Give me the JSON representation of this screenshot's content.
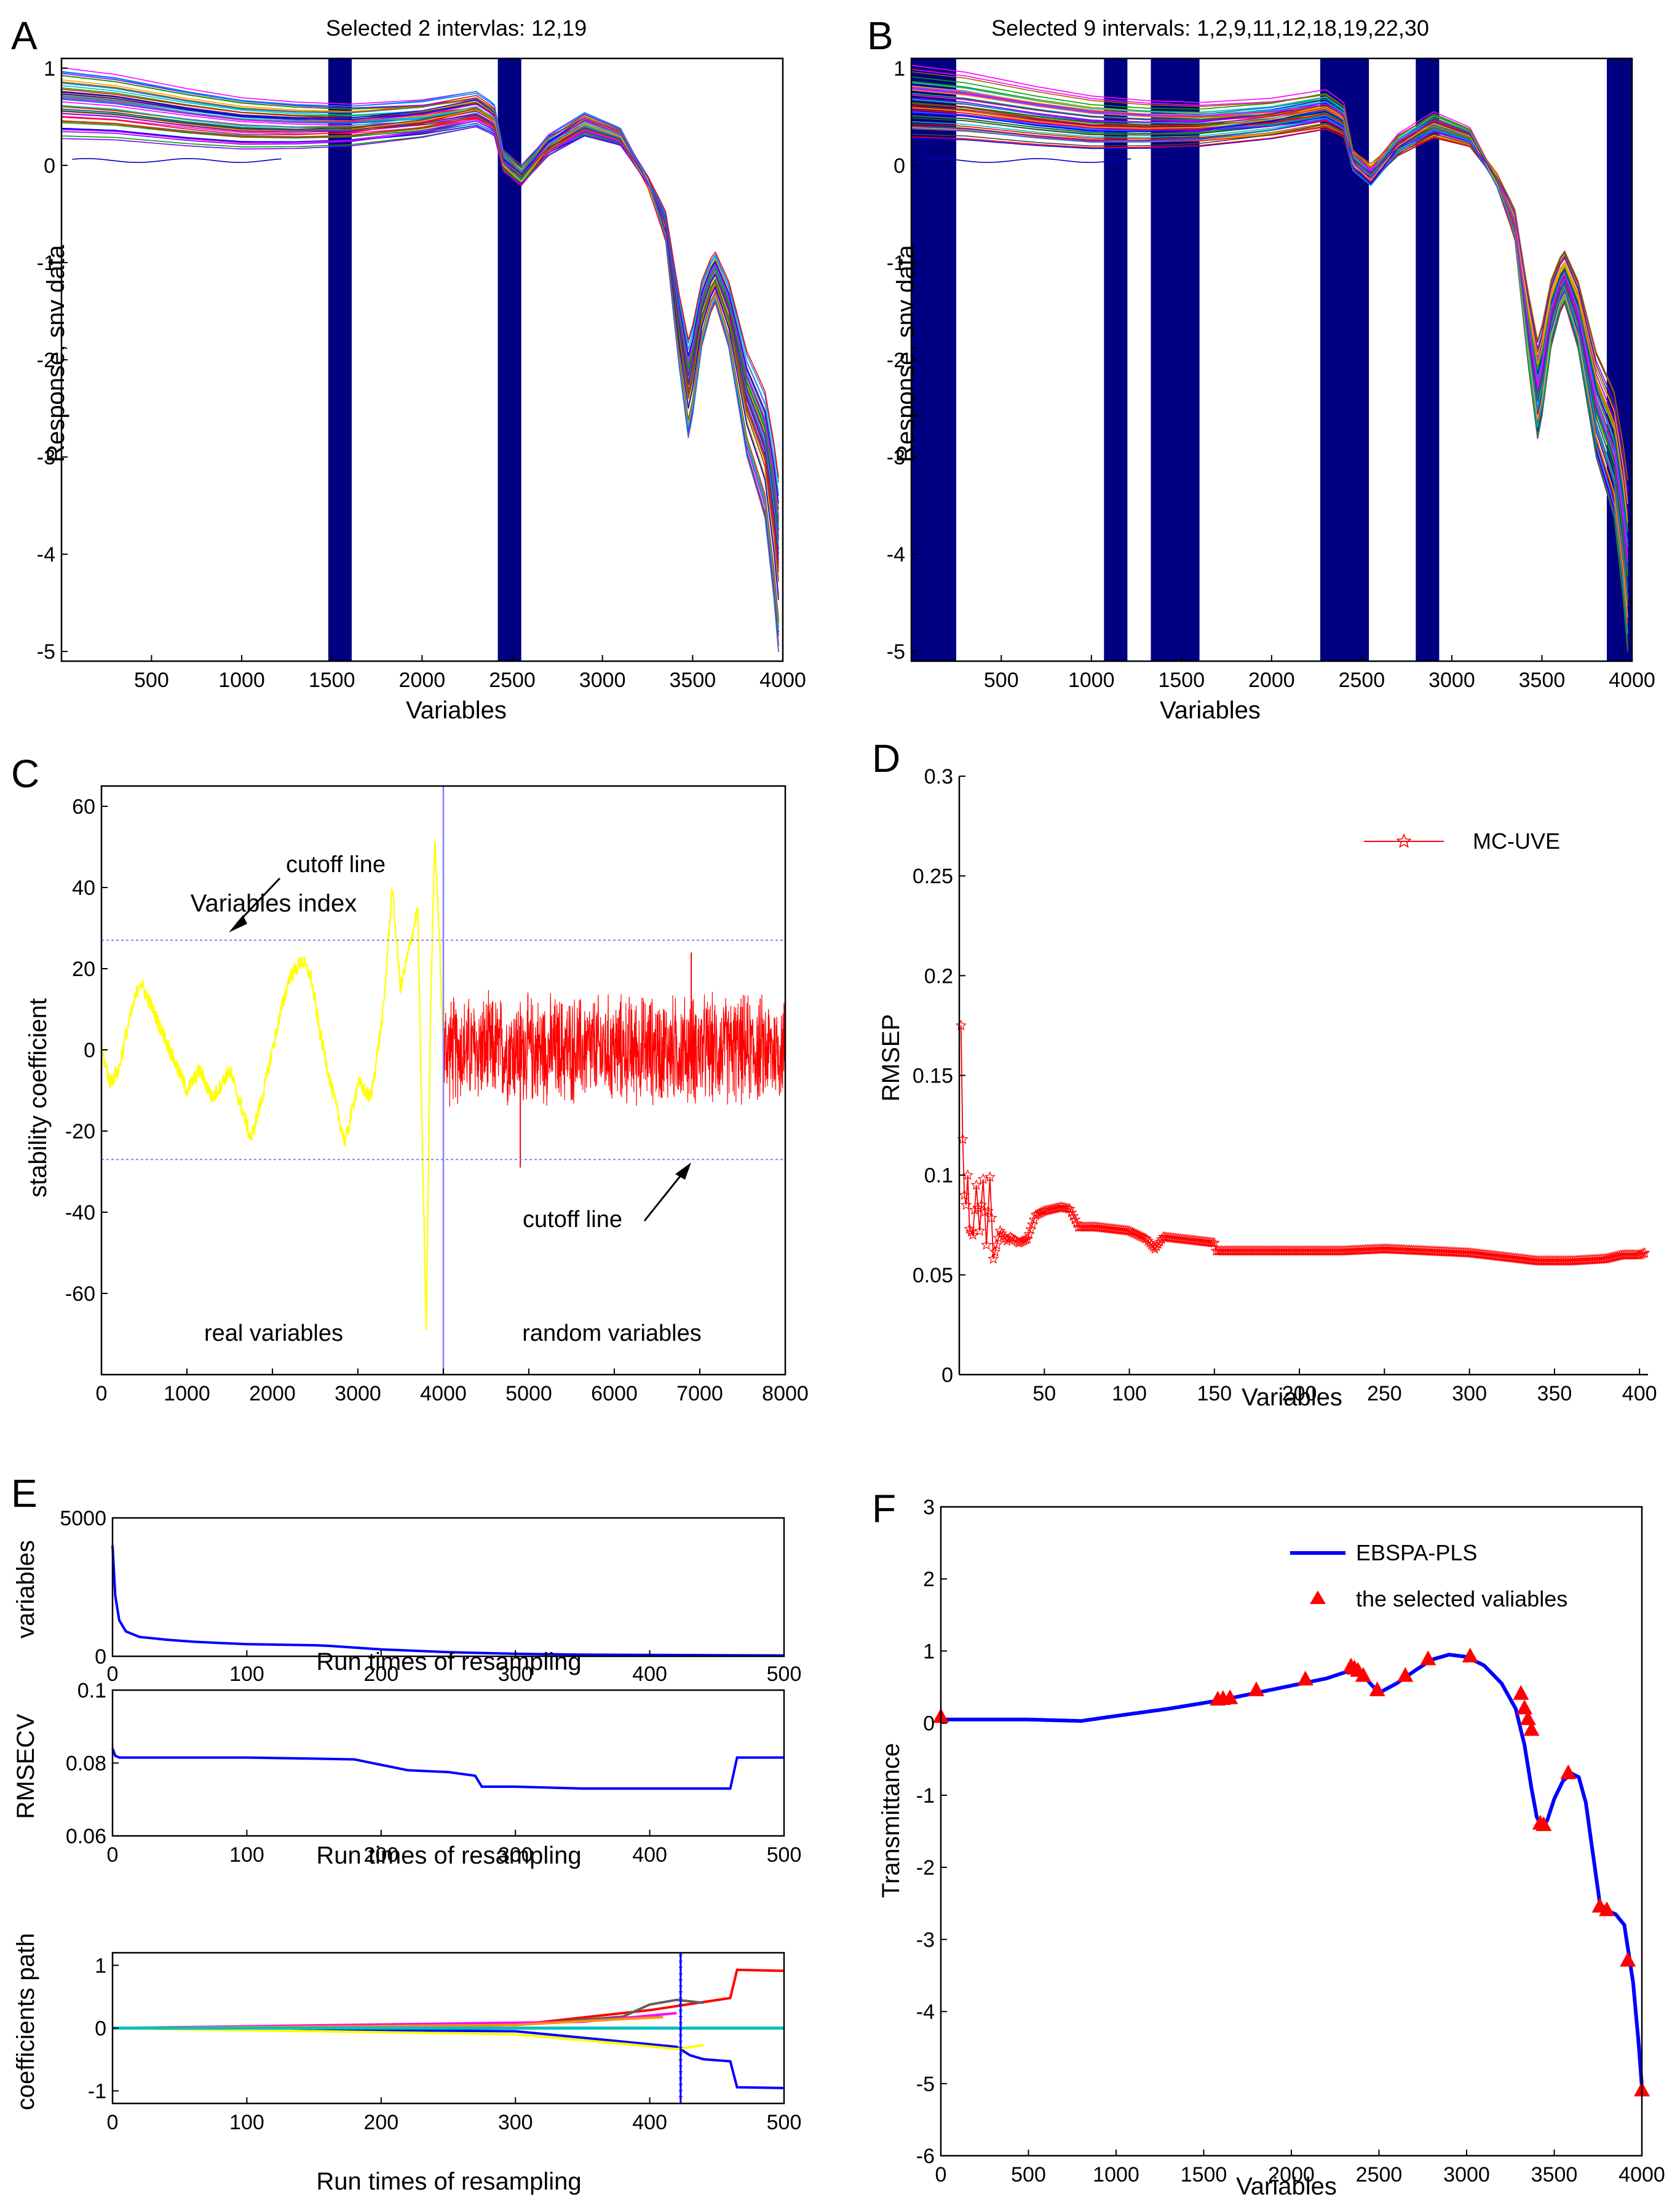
{
  "figure": {
    "panel_labels": [
      "A",
      "B",
      "C",
      "D",
      "E",
      "F"
    ],
    "colors": {
      "axis": "#000000",
      "interval_fill": "#000080",
      "cutoff": "#8080ff",
      "divider": "#8080ff",
      "real": "#ffff00",
      "random": "#ff0000",
      "mcuve": "#ff0000",
      "blue_line": "#0000ff",
      "cyan": "#00c0c0",
      "spectra_palette": [
        "#0000ff",
        "#ff0000",
        "#00a000",
        "#ff00ff",
        "#00c0c0",
        "#ffa000",
        "#404040",
        "#8000ff",
        "#a06000",
        "#0080ff"
      ]
    }
  },
  "chart_data": [
    {
      "panel": "A",
      "type": "line",
      "title": "Selected  2  intervlas: 12,19",
      "xlabel": "Variables",
      "ylabel": "Response, snv data",
      "xlim": [
        1,
        4000
      ],
      "ylim": [
        -5.1,
        1.1
      ],
      "xticks": [
        500,
        1000,
        1500,
        2000,
        2500,
        3000,
        3500,
        4000
      ],
      "yticks": [
        1,
        0,
        -1,
        -2,
        -3,
        -4,
        -5
      ],
      "intervals": [
        [
          1480,
          1610
        ],
        [
          2420,
          2550
        ]
      ],
      "mean_spectrum_x": [
        1,
        300,
        700,
        1000,
        1300,
        1600,
        2000,
        2300,
        2400,
        2450,
        2550,
        2700,
        2900,
        3100,
        3250,
        3350,
        3420,
        3480,
        3550,
        3620,
        3700,
        3800,
        3900,
        3960,
        4000
      ],
      "mean_spectrum_y": [
        0.62,
        0.58,
        0.48,
        0.42,
        0.4,
        0.4,
        0.46,
        0.55,
        0.45,
        0.05,
        -0.1,
        0.2,
        0.4,
        0.28,
        -0.15,
        -0.6,
        -1.6,
        -2.3,
        -1.5,
        -1.1,
        -1.5,
        -2.4,
        -2.9,
        -3.7,
        -4.5
      ],
      "curve_count": 60
    },
    {
      "panel": "B",
      "type": "line",
      "title": "Selected  9  intervals: 1,2,9,11,12,18,19,22,30",
      "xlabel": "Variables",
      "ylabel": "Response, snv data",
      "xlim": [
        1,
        4000
      ],
      "ylim": [
        -5.1,
        1.1
      ],
      "xticks": [
        500,
        1000,
        1500,
        2000,
        2500,
        3000,
        3500,
        4000
      ],
      "yticks": [
        1,
        0,
        -1,
        -2,
        -3,
        -4,
        -5
      ],
      "intervals": [
        [
          1,
          250
        ],
        [
          1070,
          1200
        ],
        [
          1330,
          1600
        ],
        [
          2270,
          2540
        ],
        [
          2800,
          2930
        ],
        [
          3860,
          4000
        ]
      ],
      "mean_spectrum_x": [
        1,
        300,
        700,
        1000,
        1300,
        1600,
        2000,
        2300,
        2400,
        2450,
        2550,
        2700,
        2900,
        3100,
        3250,
        3350,
        3420,
        3480,
        3550,
        3620,
        3700,
        3800,
        3900,
        3960,
        4000
      ],
      "mean_spectrum_y": [
        0.62,
        0.58,
        0.48,
        0.42,
        0.4,
        0.4,
        0.46,
        0.55,
        0.45,
        0.05,
        -0.1,
        0.2,
        0.4,
        0.28,
        -0.15,
        -0.6,
        -1.6,
        -2.3,
        -1.5,
        -1.1,
        -1.5,
        -2.4,
        -2.9,
        -3.7,
        -4.5
      ],
      "curve_count": 60
    },
    {
      "panel": "C",
      "type": "line",
      "title": "",
      "xlabel": "Variables index",
      "ylabel": "stability coefficient",
      "xlim": [
        0,
        8000
      ],
      "ylim": [
        -80,
        65
      ],
      "xticks": [
        0,
        1000,
        2000,
        3000,
        4000,
        5000,
        6000,
        7000,
        8000
      ],
      "yticks": [
        60,
        40,
        20,
        0,
        -20,
        -40,
        -60
      ],
      "cutoff": 27,
      "divider_x": 4000,
      "real_x": [
        0,
        100,
        200,
        300,
        450,
        600,
        800,
        1000,
        1150,
        1300,
        1500,
        1650,
        1750,
        1900,
        2050,
        2200,
        2350,
        2450,
        2550,
        2700,
        2850,
        3000,
        3150,
        3300,
        3400,
        3500,
        3600,
        3700,
        3750,
        3800,
        3850,
        3900,
        3950,
        4000
      ],
      "real_y": [
        0,
        -8,
        -5,
        5,
        17,
        10,
        0,
        -10,
        -5,
        -12,
        -5,
        -15,
        -22,
        -10,
        5,
        18,
        22,
        18,
        5,
        -10,
        -23,
        -8,
        -12,
        10,
        40,
        15,
        25,
        35,
        -20,
        -70,
        10,
        52,
        30,
        0
      ],
      "random_amplitude": 11,
      "random_extremes": {
        "max": 24,
        "min": -29
      },
      "series_labels": [
        "real variables",
        "random variables"
      ],
      "annotations": [
        "cutoff line",
        "cutoff line"
      ]
    },
    {
      "panel": "D",
      "type": "line",
      "title": "",
      "xlabel": "Variables",
      "ylabel": "RMSEP",
      "xlim": [
        0,
        405
      ],
      "ylim": [
        0,
        0.3
      ],
      "xticks": [
        50,
        100,
        150,
        200,
        250,
        300,
        350,
        400
      ],
      "yticks": [
        0,
        0.05,
        0.1,
        0.15,
        0.2,
        0.25,
        0.3
      ],
      "legend": "MC-UVE",
      "x": [
        1,
        2,
        3,
        4,
        5,
        6,
        8,
        10,
        12,
        14,
        16,
        18,
        20,
        24,
        28,
        30,
        35,
        40,
        45,
        50,
        55,
        60,
        65,
        70,
        80,
        90,
        100,
        110,
        115,
        120,
        130,
        140,
        150,
        151,
        175,
        200,
        225,
        250,
        275,
        300,
        320,
        340,
        360,
        380,
        390,
        400,
        403
      ],
      "values": [
        0.175,
        0.118,
        0.09,
        0.085,
        0.1,
        0.073,
        0.07,
        0.095,
        0.072,
        0.098,
        0.065,
        0.099,
        0.058,
        0.072,
        0.067,
        0.069,
        0.066,
        0.068,
        0.08,
        0.082,
        0.083,
        0.084,
        0.083,
        0.074,
        0.074,
        0.073,
        0.072,
        0.068,
        0.063,
        0.069,
        0.068,
        0.067,
        0.066,
        0.062,
        0.062,
        0.062,
        0.062,
        0.063,
        0.062,
        0.061,
        0.059,
        0.057,
        0.057,
        0.058,
        0.06,
        0.06,
        0.061
      ]
    },
    {
      "panel": "E1",
      "type": "line",
      "title": "",
      "xlabel": "Run times of resampling",
      "ylabel": "variables",
      "xlim": [
        0,
        500
      ],
      "ylim": [
        0,
        5000
      ],
      "xticks": [
        0,
        100,
        200,
        300,
        400,
        500
      ],
      "yticks": [
        0,
        5000
      ],
      "x": [
        0,
        2,
        5,
        10,
        20,
        40,
        60,
        80,
        100,
        150,
        160,
        200,
        250,
        300,
        350,
        400,
        450,
        500
      ],
      "values": [
        4000,
        2200,
        1300,
        900,
        700,
        600,
        530,
        480,
        440,
        400,
        380,
        250,
        150,
        90,
        60,
        50,
        40,
        30
      ]
    },
    {
      "panel": "E2",
      "type": "line",
      "title": "",
      "xlabel": "Run times of resampling",
      "ylabel": "RMSECV",
      "xlim": [
        0,
        500
      ],
      "ylim": [
        0.06,
        0.1
      ],
      "xticks": [
        0,
        100,
        200,
        300,
        400,
        500
      ],
      "yticks": [
        0.06,
        0.08,
        0.1
      ],
      "x": [
        0,
        2,
        5,
        20,
        100,
        150,
        180,
        200,
        220,
        250,
        270,
        275,
        300,
        350,
        400,
        420,
        460,
        465,
        500
      ],
      "values": [
        0.084,
        0.082,
        0.0815,
        0.0815,
        0.0815,
        0.0812,
        0.081,
        0.0795,
        0.078,
        0.0775,
        0.0765,
        0.0735,
        0.0735,
        0.073,
        0.073,
        0.073,
        0.073,
        0.0815,
        0.0815
      ]
    },
    {
      "panel": "E3",
      "type": "line",
      "title": "",
      "xlabel": "Run times of resampling",
      "ylabel": "coefficients path",
      "xlim": [
        0,
        500
      ],
      "ylim": [
        -1.2,
        1.2
      ],
      "xticks": [
        0,
        100,
        200,
        300,
        400,
        500
      ],
      "yticks": [
        1,
        0,
        -1
      ],
      "marker_x": 423,
      "series": [
        {
          "name": "red",
          "x": [
            0,
            300,
            400,
            460,
            465,
            500
          ],
          "values": [
            0,
            0.05,
            0.3,
            0.5,
            0.95,
            0.9
          ]
        },
        {
          "name": "blue",
          "x": [
            0,
            300,
            420,
            430,
            440,
            460,
            465,
            500
          ],
          "values": [
            0,
            -0.05,
            -0.3,
            -0.45,
            -0.5,
            -0.55,
            -0.95,
            -0.97
          ]
        },
        {
          "name": "yellow",
          "x": [
            0,
            300,
            380,
            420,
            440
          ],
          "values": [
            0,
            -0.1,
            -0.25,
            -0.35,
            -0.3
          ]
        },
        {
          "name": "gray",
          "x": [
            0,
            300,
            380,
            400,
            420,
            440
          ],
          "values": [
            0,
            0.05,
            0.2,
            0.35,
            0.45,
            0.4
          ]
        },
        {
          "name": "magenta",
          "x": [
            0,
            350,
            390,
            420
          ],
          "values": [
            0,
            0.1,
            0.2,
            0.25
          ]
        },
        {
          "name": "orange",
          "x": [
            0,
            300,
            380,
            410
          ],
          "values": [
            0,
            0.05,
            0.15,
            0.2
          ]
        }
      ]
    },
    {
      "panel": "F",
      "type": "line",
      "title": "",
      "xlabel": "Variables",
      "ylabel": "Transmittance",
      "xlim": [
        0,
        4000
      ],
      "ylim": [
        -6,
        3
      ],
      "xticks": [
        0,
        500,
        1000,
        1500,
        2000,
        2500,
        3000,
        3500,
        4000
      ],
      "yticks": [
        3,
        2,
        1,
        0,
        -1,
        -2,
        -3,
        -4,
        -5,
        -6
      ],
      "legend": [
        "EBSPA-PLS",
        "the selected valiables"
      ],
      "x": [
        0,
        200,
        500,
        800,
        1000,
        1300,
        1600,
        1800,
        2000,
        2200,
        2300,
        2350,
        2400,
        2450,
        2500,
        2600,
        2700,
        2800,
        2900,
        3000,
        3100,
        3200,
        3280,
        3330,
        3370,
        3400,
        3430,
        3460,
        3500,
        3550,
        3600,
        3640,
        3680,
        3720,
        3760,
        3800,
        3850,
        3900,
        3950,
        3980,
        4000
      ],
      "values": [
        0.05,
        0.05,
        0.05,
        0.03,
        0.1,
        0.2,
        0.32,
        0.42,
        0.52,
        0.62,
        0.7,
        0.75,
        0.7,
        0.55,
        0.42,
        0.55,
        0.72,
        0.88,
        0.95,
        0.92,
        0.8,
        0.55,
        0.2,
        -0.3,
        -0.9,
        -1.3,
        -1.45,
        -1.35,
        -1.05,
        -0.8,
        -0.7,
        -0.75,
        -1.1,
        -1.8,
        -2.5,
        -2.6,
        -2.65,
        -2.8,
        -3.6,
        -4.4,
        -5.05
      ],
      "selected_x": [
        0,
        1580,
        1610,
        1650,
        1800,
        2080,
        2340,
        2360,
        2380,
        2410,
        2490,
        2650,
        2780,
        3020,
        3310,
        3330,
        3350,
        3370,
        3420,
        3440,
        3580,
        3760,
        3800,
        3920,
        4000
      ],
      "selected_y": [
        0.08,
        0.32,
        0.33,
        0.34,
        0.45,
        0.6,
        0.78,
        0.75,
        0.72,
        0.65,
        0.45,
        0.65,
        0.88,
        0.92,
        0.4,
        0.2,
        0.05,
        -0.1,
        -1.4,
        -1.42,
        -0.7,
        -2.55,
        -2.6,
        -3.3,
        -5.1
      ]
    }
  ]
}
